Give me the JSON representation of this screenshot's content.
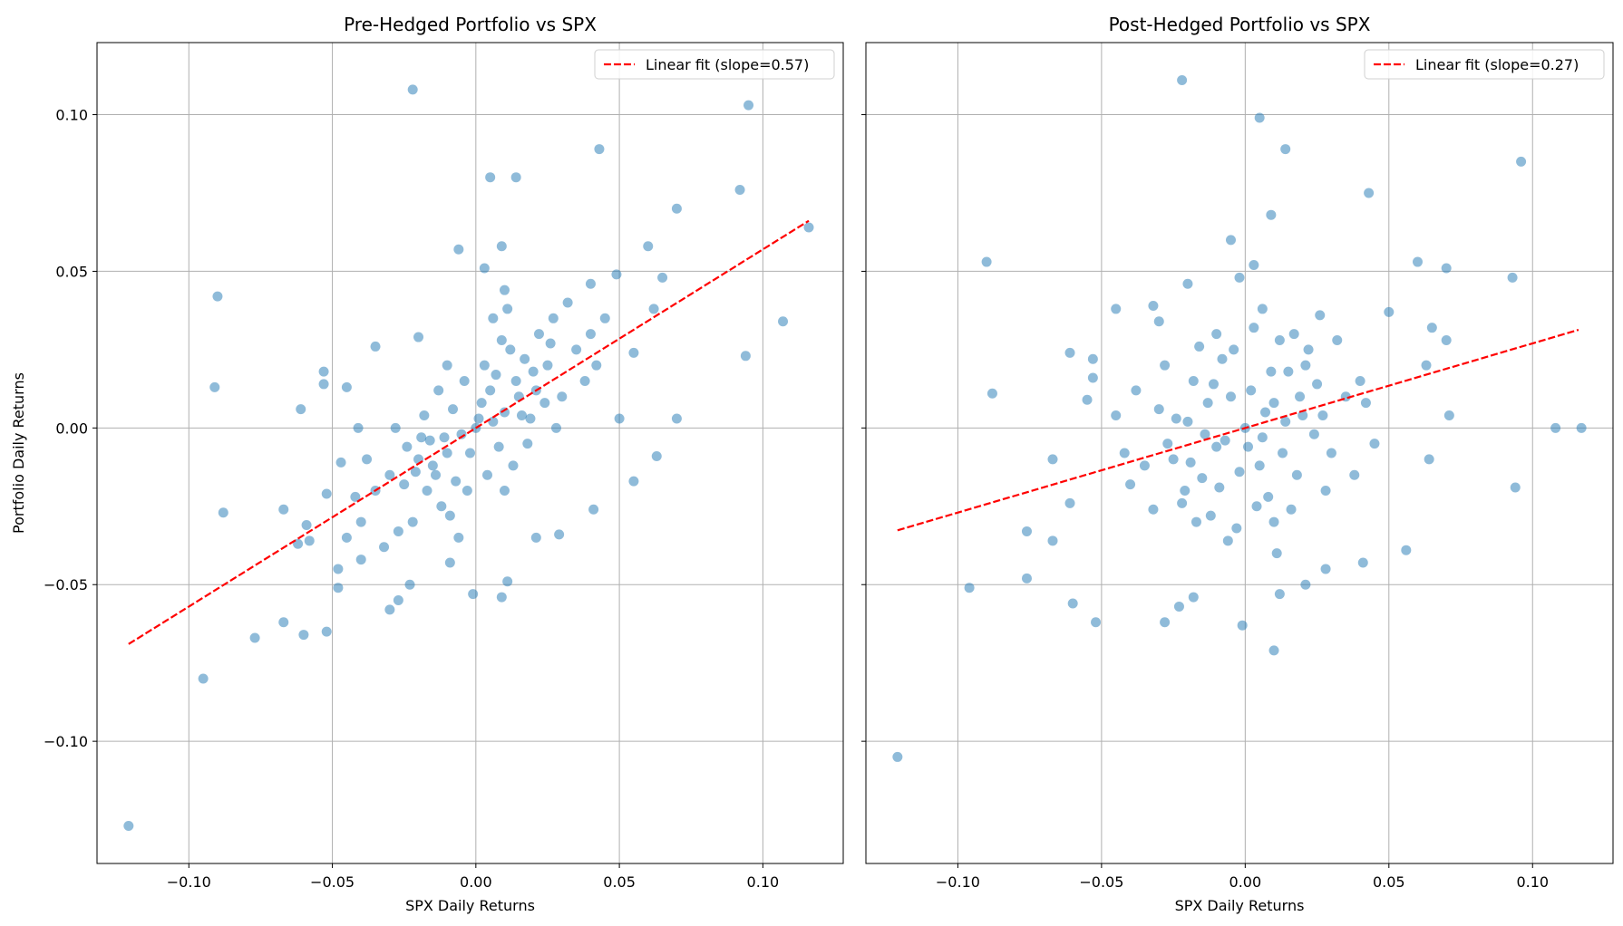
{
  "chart_data": [
    {
      "type": "scatter",
      "title": "Pre-Hedged Portfolio vs SPX",
      "xlabel": "SPX Daily Returns",
      "ylabel": "Portfolio Daily Returns",
      "xlim": [
        -0.132,
        0.128
      ],
      "ylim": [
        -0.139,
        0.123
      ],
      "xticks": [
        -0.1,
        -0.05,
        0.0,
        0.05,
        0.1
      ],
      "xtick_labels": [
        "−0.10",
        "−0.05",
        "0.00",
        "0.05",
        "0.10"
      ],
      "yticks": [
        -0.1,
        -0.05,
        0.0,
        0.05,
        0.1
      ],
      "ytick_labels": [
        "−0.10",
        "−0.05",
        "0.00",
        "0.05",
        "0.10"
      ],
      "grid": true,
      "legend": {
        "placement": "top-right",
        "label": "Linear fit (slope=0.57)"
      },
      "point_color": "#1f77b4",
      "fit_color": "#ff0000",
      "fit": {
        "slope": 0.57,
        "intercept": 0.0,
        "x_range": [
          -0.121,
          0.116
        ]
      },
      "points": [
        [
          -0.121,
          -0.127
        ],
        [
          -0.095,
          -0.08
        ],
        [
          -0.077,
          -0.067
        ],
        [
          -0.09,
          0.042
        ],
        [
          -0.091,
          0.013
        ],
        [
          -0.088,
          -0.027
        ],
        [
          -0.067,
          -0.026
        ],
        [
          -0.067,
          -0.062
        ],
        [
          -0.06,
          -0.066
        ],
        [
          -0.052,
          -0.065
        ],
        [
          -0.061,
          0.006
        ],
        [
          -0.059,
          -0.031
        ],
        [
          -0.058,
          -0.036
        ],
        [
          -0.062,
          -0.037
        ],
        [
          -0.022,
          0.108
        ],
        [
          0.095,
          0.103
        ],
        [
          0.043,
          0.089
        ],
        [
          0.005,
          0.08
        ],
        [
          0.014,
          0.08
        ],
        [
          0.092,
          0.076
        ],
        [
          0.07,
          0.07
        ],
        [
          0.116,
          0.064
        ],
        [
          0.107,
          0.034
        ],
        [
          0.094,
          0.023
        ],
        [
          0.07,
          0.003
        ],
        [
          0.06,
          0.058
        ],
        [
          -0.006,
          0.057
        ],
        [
          0.009,
          0.058
        ],
        [
          0.063,
          -0.009
        ],
        [
          0.055,
          -0.017
        ],
        [
          -0.001,
          -0.053
        ],
        [
          0.009,
          -0.054
        ],
        [
          0.011,
          -0.049
        ],
        [
          -0.03,
          -0.058
        ],
        [
          -0.027,
          -0.055
        ],
        [
          -0.053,
          0.018
        ],
        [
          -0.053,
          0.014
        ],
        [
          -0.045,
          0.013
        ],
        [
          -0.035,
          0.026
        ],
        [
          -0.02,
          0.029
        ],
        [
          0.055,
          0.024
        ],
        [
          0.049,
          0.049
        ],
        [
          0.065,
          0.048
        ],
        [
          0.04,
          0.046
        ],
        [
          0.062,
          0.038
        ],
        [
          0.05,
          0.003
        ],
        [
          0.041,
          -0.026
        ],
        [
          0.029,
          -0.034
        ],
        [
          0.021,
          -0.035
        ],
        [
          -0.048,
          -0.051
        ],
        [
          -0.048,
          -0.045
        ],
        [
          -0.04,
          -0.042
        ],
        [
          -0.023,
          -0.05
        ],
        [
          -0.009,
          -0.043
        ],
        [
          0.003,
          0.051
        ],
        [
          0.01,
          0.044
        ],
        [
          -0.052,
          -0.021
        ],
        [
          -0.047,
          -0.011
        ],
        [
          -0.041,
          0.0
        ],
        [
          0.01,
          0.005
        ],
        [
          -0.01,
          -0.008
        ],
        [
          0.005,
          0.012
        ],
        [
          -0.005,
          -0.002
        ],
        [
          0.015,
          0.01
        ],
        [
          -0.015,
          -0.012
        ],
        [
          0.02,
          0.018
        ],
        [
          -0.02,
          -0.01
        ],
        [
          0.0,
          0.0
        ],
        [
          0.008,
          -0.006
        ],
        [
          -0.008,
          0.006
        ],
        [
          0.025,
          0.02
        ],
        [
          -0.025,
          -0.018
        ],
        [
          0.012,
          0.025
        ],
        [
          -0.012,
          -0.025
        ],
        [
          0.03,
          0.01
        ],
        [
          -0.03,
          -0.015
        ],
        [
          0.018,
          -0.005
        ],
        [
          -0.018,
          0.004
        ],
        [
          0.003,
          0.02
        ],
        [
          -0.003,
          -0.02
        ],
        [
          0.022,
          0.03
        ],
        [
          -0.022,
          -0.03
        ],
        [
          0.035,
          0.025
        ],
        [
          -0.035,
          -0.02
        ],
        [
          0.006,
          0.035
        ],
        [
          -0.006,
          -0.035
        ],
        [
          0.028,
          0.0
        ],
        [
          -0.028,
          0.0
        ],
        [
          0.014,
          0.015
        ],
        [
          -0.014,
          -0.015
        ],
        [
          0.04,
          0.03
        ],
        [
          -0.04,
          -0.03
        ],
        [
          0.01,
          -0.02
        ],
        [
          -0.01,
          0.02
        ],
        [
          0.032,
          0.04
        ],
        [
          -0.032,
          -0.038
        ],
        [
          0.002,
          0.008
        ],
        [
          -0.002,
          -0.008
        ],
        [
          0.017,
          0.022
        ],
        [
          -0.017,
          -0.02
        ],
        [
          0.045,
          0.035
        ],
        [
          -0.045,
          -0.035
        ],
        [
          0.024,
          0.008
        ],
        [
          -0.024,
          -0.006
        ],
        [
          0.009,
          0.028
        ],
        [
          -0.009,
          -0.028
        ],
        [
          0.038,
          0.015
        ],
        [
          -0.038,
          -0.01
        ],
        [
          0.013,
          -0.012
        ],
        [
          -0.013,
          0.012
        ],
        [
          0.027,
          0.035
        ],
        [
          -0.027,
          -0.033
        ],
        [
          0.004,
          -0.015
        ],
        [
          -0.004,
          0.015
        ],
        [
          0.019,
          0.003
        ],
        [
          -0.019,
          -0.003
        ],
        [
          0.042,
          0.02
        ],
        [
          -0.042,
          -0.022
        ],
        [
          0.011,
          0.038
        ],
        [
          0.007,
          0.017
        ],
        [
          -0.007,
          -0.017
        ],
        [
          0.016,
          0.004
        ],
        [
          -0.016,
          -0.004
        ],
        [
          0.001,
          0.003
        ],
        [
          0.021,
          0.012
        ],
        [
          -0.021,
          -0.014
        ],
        [
          0.026,
          0.027
        ],
        [
          -0.011,
          -0.003
        ],
        [
          0.006,
          0.002
        ]
      ]
    },
    {
      "type": "scatter",
      "title": "Post-Hedged Portfolio vs SPX",
      "xlabel": "SPX Daily Returns",
      "xlim": [
        -0.132,
        0.128
      ],
      "ylim": [
        -0.139,
        0.123
      ],
      "xticks": [
        -0.1,
        -0.05,
        0.0,
        0.05,
        0.1
      ],
      "xtick_labels": [
        "−0.10",
        "−0.05",
        "0.00",
        "0.05",
        "0.10"
      ],
      "yticks": [
        -0.1,
        -0.05,
        0.0,
        0.05,
        0.1
      ],
      "grid": true,
      "legend": {
        "placement": "top-right",
        "label": "Linear fit (slope=0.27)"
      },
      "point_color": "#1f77b4",
      "fit_color": "#ff0000",
      "fit": {
        "slope": 0.27,
        "intercept": 0.0,
        "x_range": [
          -0.121,
          0.116
        ]
      },
      "points": [
        [
          -0.121,
          -0.105
        ],
        [
          -0.096,
          -0.051
        ],
        [
          -0.09,
          0.053
        ],
        [
          -0.088,
          0.011
        ],
        [
          -0.076,
          -0.048
        ],
        [
          -0.076,
          -0.033
        ],
        [
          -0.067,
          -0.01
        ],
        [
          -0.067,
          -0.036
        ],
        [
          -0.06,
          -0.056
        ],
        [
          -0.061,
          -0.024
        ],
        [
          -0.061,
          0.024
        ],
        [
          -0.052,
          -0.062
        ],
        [
          -0.053,
          0.022
        ],
        [
          -0.022,
          0.111
        ],
        [
          0.005,
          0.099
        ],
        [
          0.014,
          0.089
        ],
        [
          0.009,
          0.068
        ],
        [
          0.043,
          0.075
        ],
        [
          0.096,
          0.085
        ],
        [
          0.093,
          0.048
        ],
        [
          0.07,
          0.051
        ],
        [
          0.06,
          0.053
        ],
        [
          0.108,
          0.0
        ],
        [
          0.117,
          0.0
        ],
        [
          0.094,
          -0.019
        ],
        [
          0.071,
          0.004
        ],
        [
          0.056,
          -0.039
        ],
        [
          0.041,
          -0.043
        ],
        [
          0.028,
          -0.045
        ],
        [
          0.01,
          -0.071
        ],
        [
          -0.001,
          -0.063
        ],
        [
          0.012,
          -0.053
        ],
        [
          0.021,
          -0.05
        ],
        [
          -0.028,
          -0.062
        ],
        [
          -0.023,
          -0.057
        ],
        [
          -0.018,
          -0.054
        ],
        [
          -0.005,
          0.06
        ],
        [
          -0.045,
          0.038
        ],
        [
          0.064,
          -0.01
        ],
        [
          0.065,
          0.032
        ],
        [
          0.05,
          0.037
        ],
        [
          0.07,
          0.028
        ],
        [
          0.063,
          0.02
        ],
        [
          -0.053,
          0.016
        ],
        [
          -0.055,
          0.009
        ],
        [
          -0.03,
          0.034
        ],
        [
          -0.032,
          0.039
        ],
        [
          -0.02,
          0.046
        ],
        [
          -0.002,
          0.048
        ],
        [
          0.003,
          0.052
        ],
        [
          0.01,
          0.008
        ],
        [
          -0.01,
          -0.006
        ],
        [
          0.005,
          -0.012
        ],
        [
          -0.005,
          0.01
        ],
        [
          0.015,
          0.018
        ],
        [
          -0.015,
          -0.016
        ],
        [
          0.02,
          0.004
        ],
        [
          -0.02,
          0.002
        ],
        [
          0.0,
          0.0
        ],
        [
          0.008,
          -0.022
        ],
        [
          -0.008,
          0.022
        ],
        [
          0.025,
          0.014
        ],
        [
          -0.025,
          -0.01
        ],
        [
          0.012,
          0.028
        ],
        [
          -0.012,
          -0.028
        ],
        [
          0.03,
          -0.008
        ],
        [
          -0.03,
          0.006
        ],
        [
          0.018,
          -0.015
        ],
        [
          -0.018,
          0.015
        ],
        [
          0.003,
          0.032
        ],
        [
          -0.003,
          -0.032
        ],
        [
          0.022,
          0.025
        ],
        [
          -0.022,
          -0.024
        ],
        [
          0.035,
          0.01
        ],
        [
          -0.035,
          -0.012
        ],
        [
          0.006,
          0.038
        ],
        [
          -0.006,
          -0.036
        ],
        [
          0.028,
          -0.02
        ],
        [
          -0.028,
          0.02
        ],
        [
          0.014,
          0.002
        ],
        [
          -0.014,
          -0.002
        ],
        [
          0.04,
          0.015
        ],
        [
          -0.04,
          -0.018
        ],
        [
          0.01,
          -0.03
        ],
        [
          -0.01,
          0.03
        ],
        [
          0.032,
          0.028
        ],
        [
          -0.032,
          -0.026
        ],
        [
          0.002,
          0.012
        ],
        [
          -0.002,
          -0.014
        ],
        [
          0.017,
          0.03
        ],
        [
          -0.017,
          -0.03
        ],
        [
          0.045,
          -0.005
        ],
        [
          -0.045,
          0.004
        ],
        [
          0.024,
          -0.002
        ],
        [
          -0.024,
          0.003
        ],
        [
          0.009,
          0.018
        ],
        [
          -0.009,
          -0.019
        ],
        [
          0.038,
          -0.015
        ],
        [
          -0.038,
          0.012
        ],
        [
          0.013,
          -0.008
        ],
        [
          -0.013,
          0.008
        ],
        [
          0.027,
          0.004
        ],
        [
          -0.027,
          -0.005
        ],
        [
          0.004,
          -0.025
        ],
        [
          -0.004,
          0.025
        ],
        [
          0.019,
          0.01
        ],
        [
          -0.019,
          -0.011
        ],
        [
          0.042,
          0.008
        ],
        [
          -0.042,
          -0.008
        ],
        [
          0.011,
          -0.04
        ],
        [
          0.007,
          0.005
        ],
        [
          -0.007,
          -0.004
        ],
        [
          0.016,
          -0.026
        ],
        [
          -0.016,
          0.026
        ],
        [
          0.001,
          -0.006
        ],
        [
          0.021,
          0.02
        ],
        [
          -0.021,
          -0.02
        ],
        [
          0.026,
          0.036
        ],
        [
          -0.011,
          0.014
        ],
        [
          0.006,
          -0.003
        ]
      ]
    }
  ]
}
